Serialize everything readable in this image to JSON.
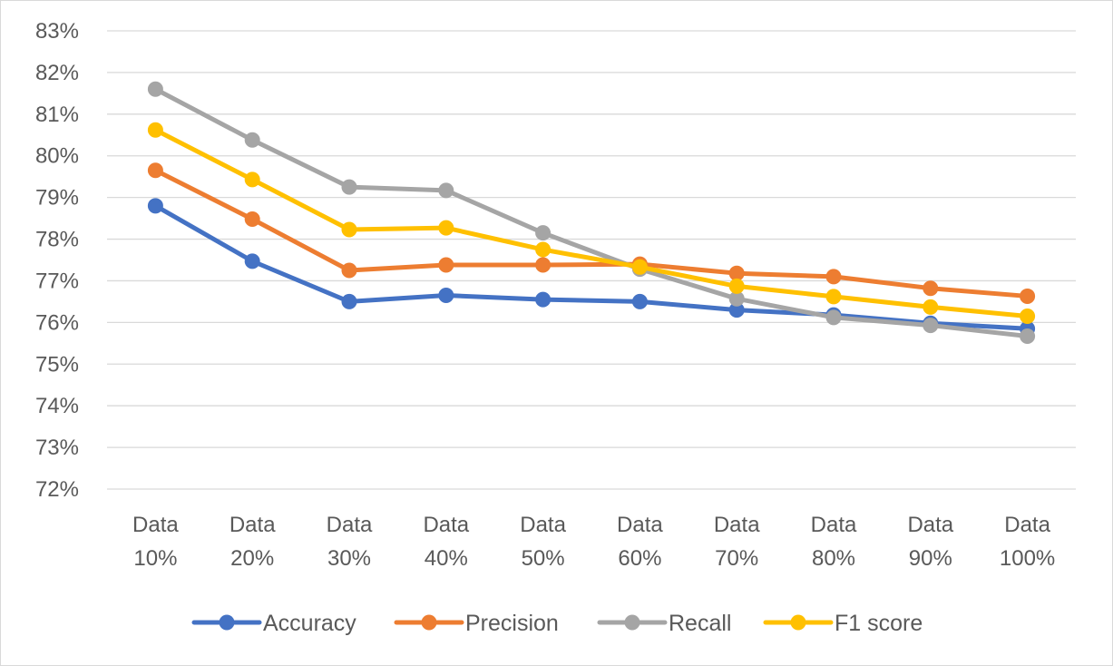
{
  "chart_data": {
    "type": "line",
    "categories": [
      "Data 10%",
      "Data 20%",
      "Data 30%",
      "Data 40%",
      "Data 50%",
      "Data 60%",
      "Data 70%",
      "Data 80%",
      "Data 90%",
      "Data 100%"
    ],
    "category_lines": [
      [
        "Data",
        "10%"
      ],
      [
        "Data",
        "20%"
      ],
      [
        "Data",
        "30%"
      ],
      [
        "Data",
        "40%"
      ],
      [
        "Data",
        "50%"
      ],
      [
        "Data",
        "60%"
      ],
      [
        "Data",
        "70%"
      ],
      [
        "Data",
        "80%"
      ],
      [
        "Data",
        "90%"
      ],
      [
        "Data",
        "100%"
      ]
    ],
    "y_ticks": [
      "72%",
      "73%",
      "74%",
      "75%",
      "76%",
      "77%",
      "78%",
      "79%",
      "80%",
      "81%",
      "82%",
      "83%"
    ],
    "ylim": [
      72,
      83
    ],
    "y_unit": "%",
    "grid": true,
    "legend_position": "bottom",
    "series": [
      {
        "name": "Accuracy",
        "color": "#4472C4",
        "values": [
          78.8,
          77.47,
          76.5,
          76.65,
          76.55,
          76.5,
          76.3,
          76.18,
          75.98,
          75.85
        ]
      },
      {
        "name": "Precision",
        "color": "#ED7D31",
        "values": [
          79.65,
          78.48,
          77.25,
          77.38,
          77.38,
          77.4,
          77.18,
          77.1,
          76.82,
          76.63
        ]
      },
      {
        "name": "Recall",
        "color": "#A5A5A5",
        "values": [
          81.6,
          80.38,
          79.25,
          79.17,
          78.15,
          77.28,
          76.57,
          76.12,
          75.93,
          75.67
        ]
      },
      {
        "name": "F1 score",
        "color": "#FFC000",
        "values": [
          80.62,
          79.43,
          78.23,
          78.27,
          77.75,
          77.33,
          76.87,
          76.62,
          76.37,
          76.15
        ]
      }
    ]
  }
}
